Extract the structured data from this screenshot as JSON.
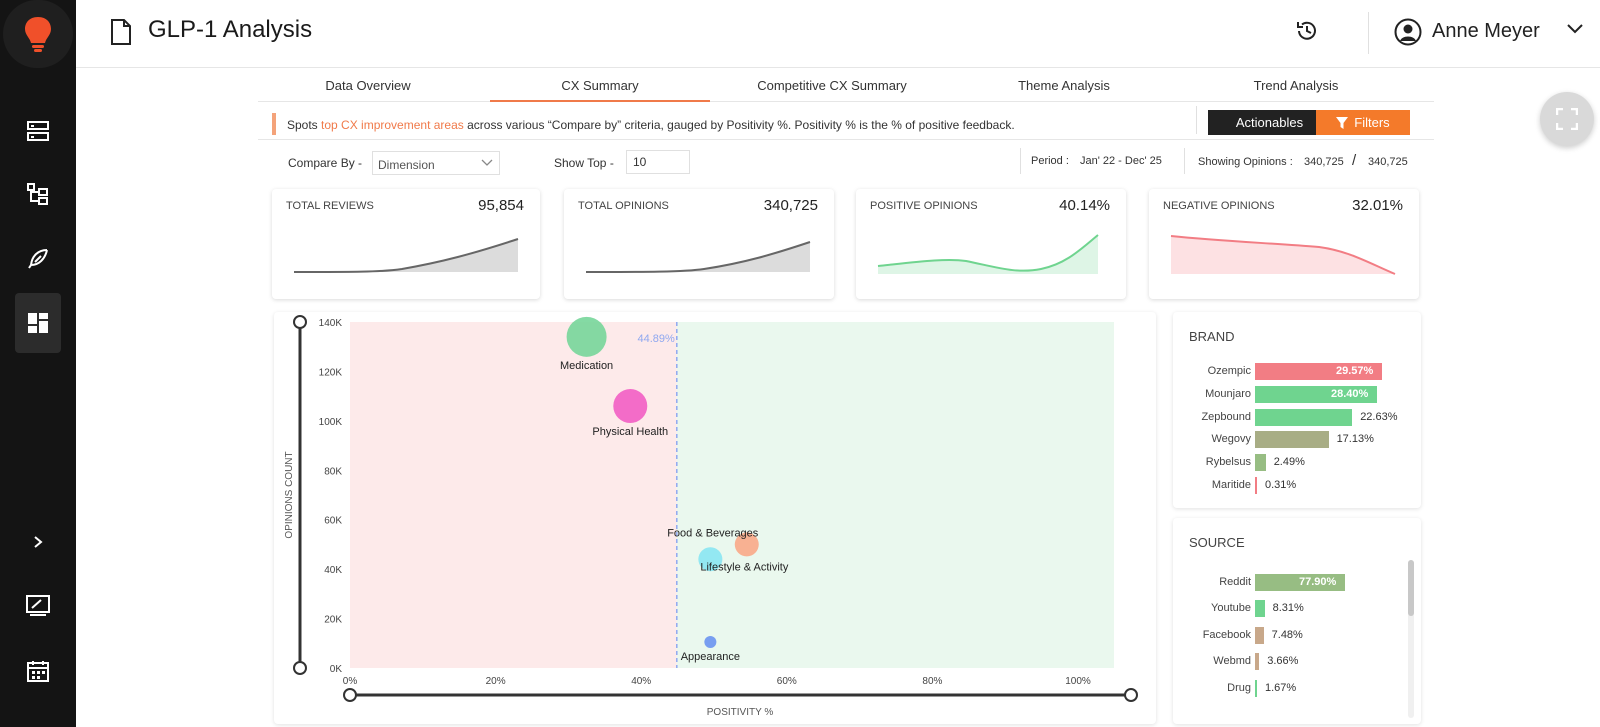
{
  "header": {
    "title": "GLP-1 Analysis",
    "user_name": "Anne Meyer"
  },
  "tabs": [
    {
      "label": "Data Overview"
    },
    {
      "label": "CX Summary",
      "active": true
    },
    {
      "label": "Competitive CX Summary"
    },
    {
      "label": "Theme Analysis"
    },
    {
      "label": "Trend Analysis"
    }
  ],
  "info": {
    "prefix": "Spots ",
    "highlight": "top CX improvement areas",
    "suffix": " across various “Compare by” criteria, gauged by Positivity %. Positivity % is the % of positive feedback.",
    "actionables_label": "Actionables",
    "filters_label": "Filters"
  },
  "controls": {
    "compare_by_label": "Compare By -",
    "compare_by_value": "Dimension",
    "show_top_label": "Show Top -",
    "show_top_value": "10",
    "period_label": "Period :",
    "period_value": "Jan' 22 - Dec' 25",
    "showing_label": "Showing Opinions :",
    "showing_value": "340,725",
    "showing_total": "340,725",
    "showing_sep": "/"
  },
  "kpis": [
    {
      "label": "TOTAL REVIEWS",
      "value": "95,854"
    },
    {
      "label": "TOTAL OPINIONS",
      "value": "340,725"
    },
    {
      "label": "POSITIVE OPINIONS",
      "value": "40.14%"
    },
    {
      "label": "NEGATIVE OPINIONS",
      "value": "32.01%"
    }
  ],
  "colors": {
    "accent": "#f07a4a",
    "negative_zone": "#fdeaea",
    "positive_zone": "#eaf8ee",
    "bar_red": "#f27d84",
    "bar_green": "#6fd48f",
    "bar_olive": "#a8ad85",
    "bar_olive_green": "#97bd83",
    "bar_brown": "#c8a88a"
  },
  "chart_data": {
    "type": "scatter",
    "xlabel": "POSITIVITY %",
    "ylabel": "OPINIONS COUNT",
    "xlim": [
      0,
      105
    ],
    "ylim": [
      0,
      140000
    ],
    "x_ticks": [
      "0%",
      "20%",
      "40%",
      "60%",
      "80%",
      "100%"
    ],
    "y_ticks": [
      "0K",
      "20K",
      "40K",
      "60K",
      "80K",
      "100K",
      "120K",
      "140K"
    ],
    "threshold": {
      "x": 44.89,
      "label": "44.89%"
    },
    "points": [
      {
        "name": "Medication",
        "x": 32.5,
        "y": 134000,
        "color": "#77d69a",
        "r": 20
      },
      {
        "name": "Physical Health",
        "x": 38.5,
        "y": 106000,
        "color": "#f25ec4",
        "r": 17
      },
      {
        "name": "Food & Beverages",
        "x": 54.5,
        "y": 50000,
        "color": "#f9a987",
        "r": 12
      },
      {
        "name": "Lifestyle & Activity",
        "x": 49.5,
        "y": 44000,
        "color": "#8ae6f2",
        "r": 12
      },
      {
        "name": "Appearance",
        "x": 49.5,
        "y": 10500,
        "color": "#6b93f0",
        "r": 6
      }
    ]
  },
  "brand": {
    "title": "BRAND",
    "items": [
      {
        "label": "Ozempic",
        "value": 29.57,
        "text": "29.57%",
        "color": "#f27d84",
        "inside": true
      },
      {
        "label": "Mounjaro",
        "value": 28.4,
        "text": "28.40%",
        "color": "#6fd48f",
        "inside": true
      },
      {
        "label": "Zepbound",
        "value": 22.63,
        "text": "22.63%",
        "color": "#6fd48f",
        "inside": false
      },
      {
        "label": "Wegovy",
        "value": 17.13,
        "text": "17.13%",
        "color": "#a8ad85",
        "inside": false
      },
      {
        "label": "Rybelsus",
        "value": 2.49,
        "text": "2.49%",
        "color": "#97bd83",
        "inside": false
      },
      {
        "label": "Maritide",
        "value": 0.31,
        "text": "0.31%",
        "color": "#f27d84",
        "inside": false
      }
    ]
  },
  "source": {
    "title": "SOURCE",
    "items": [
      {
        "label": "Reddit",
        "value": 77.9,
        "text": "77.90%",
        "color": "#97bd83",
        "inside": true
      },
      {
        "label": "Youtube",
        "value": 8.31,
        "text": "8.31%",
        "color": "#6fd48f",
        "inside": false
      },
      {
        "label": "Facebook",
        "value": 7.48,
        "text": "7.48%",
        "color": "#c8a88a",
        "inside": false
      },
      {
        "label": "Webmd",
        "value": 3.66,
        "text": "3.66%",
        "color": "#c8a88a",
        "inside": false
      },
      {
        "label": "Drug",
        "value": 1.67,
        "text": "1.67%",
        "color": "#6fd48f",
        "inside": false
      }
    ]
  }
}
